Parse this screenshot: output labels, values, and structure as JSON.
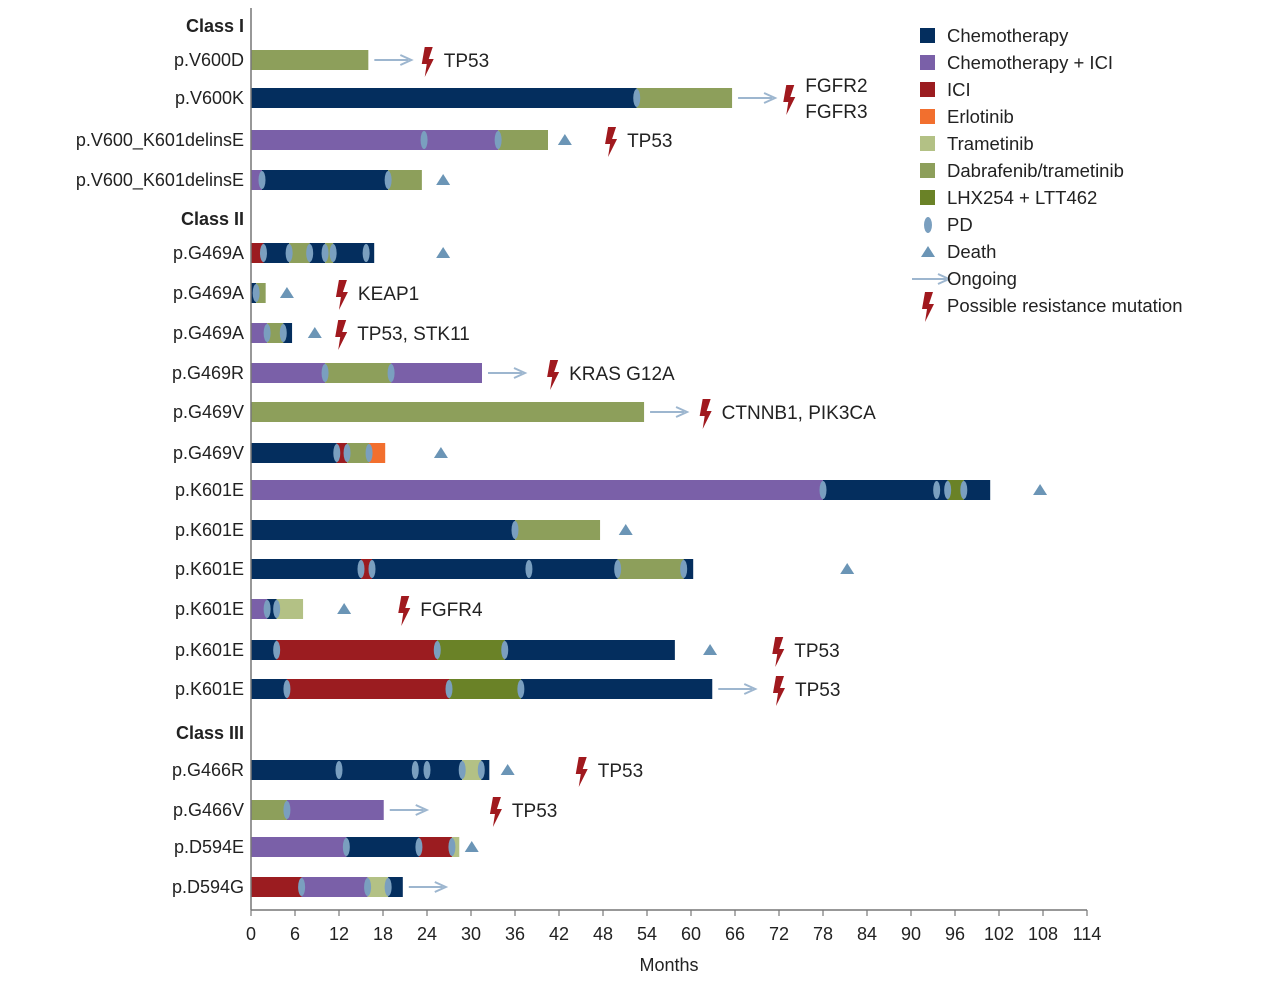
{
  "chart_data": {
    "type": "swimmer",
    "xlabel": "Months",
    "xlim": [
      0,
      114
    ],
    "xticks": [
      0,
      6,
      12,
      18,
      24,
      30,
      36,
      42,
      48,
      54,
      60,
      66,
      72,
      78,
      84,
      90,
      96,
      102,
      108,
      114
    ],
    "treatments": {
      "chemo": {
        "name": "Chemotherapy",
        "color": "#042e5e"
      },
      "chemoici": {
        "name": "Chemotherapy + ICI",
        "color": "#7a60a8"
      },
      "ici": {
        "name": "ICI",
        "color": "#9b1c20"
      },
      "erlotinib": {
        "name": "Erlotinib",
        "color": "#f26f2e"
      },
      "trametinib": {
        "name": "Trametinib",
        "color": "#b3c185"
      },
      "dt": {
        "name": "Dabrafenib/trametinib",
        "color": "#8d9f5b"
      },
      "lhx": {
        "name": "LHX254 + LTT462",
        "color": "#6a8227"
      }
    },
    "markers": {
      "pd": {
        "name": "PD",
        "color": "#7a9fbf"
      },
      "death": {
        "name": "Death",
        "color": "#6b95b6"
      },
      "ongoing": {
        "name": "Ongoing",
        "color": "#9db6cf"
      },
      "mutation": {
        "name": "Possible resistance mutation",
        "color": "#a0191e"
      }
    },
    "legend_order": [
      "chemo",
      "chemoici",
      "ici",
      "erlotinib",
      "trametinib",
      "dt",
      "lhx",
      "pd",
      "death",
      "ongoing",
      "mutation"
    ],
    "legend_position": "top-right",
    "rows": [
      {
        "header": "Class I"
      },
      {
        "label": "p.V600D",
        "segments": [
          [
            "dt",
            0,
            16
          ]
        ],
        "pd": [],
        "ongoing": true,
        "mutation": {
          "month": 24.1,
          "text": [
            "TP53"
          ]
        }
      },
      {
        "label": "p.V600K",
        "segments": [
          [
            "chemo",
            0,
            52.6
          ],
          [
            "dt",
            52.6,
            65.6
          ]
        ],
        "pd": [
          52.6
        ],
        "ongoing": true,
        "mutation": {
          "month": 73.4,
          "text": [
            "FGFR2",
            "FGFR3"
          ]
        }
      },
      {
        "label": "p.V600_K601delinsE",
        "segments": [
          [
            "chemoici",
            0,
            33.7
          ],
          [
            "dt",
            33.7,
            40.5
          ]
        ],
        "pd": [
          23.6,
          33.7
        ],
        "death": 42.8,
        "mutation": {
          "month": 49.1,
          "text": [
            "TP53"
          ]
        }
      },
      {
        "label": "p.V600_K601delinsE",
        "segments": [
          [
            "chemoici",
            0,
            1.5
          ],
          [
            "chemo",
            1.5,
            18.7
          ],
          [
            "dt",
            18.7,
            23.3
          ]
        ],
        "pd": [
          1.5,
          18.7
        ],
        "death": 26.2
      },
      {
        "header": "Class II"
      },
      {
        "label": "p.G469A",
        "segments": [
          [
            "ici",
            0,
            1.7
          ],
          [
            "chemo",
            1.7,
            5.2
          ],
          [
            "dt",
            5.2,
            8.0
          ],
          [
            "chemo",
            8.0,
            10.1
          ],
          [
            "dt",
            10.1,
            11.2
          ],
          [
            "chemo",
            11.2,
            16.8
          ]
        ],
        "pd": [
          1.7,
          5.2,
          8.0,
          10.1,
          11.2,
          15.7
        ],
        "death": 26.2
      },
      {
        "label": "p.G469A",
        "segments": [
          [
            "chemo",
            0,
            0.7
          ],
          [
            "dt",
            0.7,
            2.0
          ]
        ],
        "pd": [
          0.7
        ],
        "death": 4.9,
        "mutation": {
          "month": 12.4,
          "text": [
            "KEAP1"
          ]
        }
      },
      {
        "label": "p.G469A",
        "segments": [
          [
            "chemoici",
            0,
            2.2
          ],
          [
            "dt",
            2.2,
            4.4
          ],
          [
            "chemo",
            4.4,
            5.6
          ]
        ],
        "pd": [
          2.2,
          4.4
        ],
        "death": 8.7,
        "mutation": {
          "month": 12.3,
          "text": [
            "TP53, STK11"
          ]
        }
      },
      {
        "label": "p.G469R",
        "segments": [
          [
            "chemoici",
            0,
            10.1
          ],
          [
            "dt",
            10.1,
            19.1
          ],
          [
            "chemoici",
            19.1,
            31.5
          ]
        ],
        "pd": [
          10.1,
          19.1
        ],
        "ongoing": true,
        "mutation": {
          "month": 41.2,
          "text": [
            "KRAS G12A"
          ]
        }
      },
      {
        "label": "p.G469V",
        "segments": [
          [
            "dt",
            0,
            53.6
          ]
        ],
        "pd": [],
        "ongoing": true,
        "mutation": {
          "month": 62.0,
          "text": [
            "CTNNB1, PIK3CA"
          ]
        }
      },
      {
        "label": "p.G469V",
        "segments": [
          [
            "chemo",
            0,
            11.7
          ],
          [
            "ici",
            11.7,
            13.1
          ],
          [
            "dt",
            13.1,
            16.1
          ],
          [
            "erlotinib",
            16.1,
            18.3
          ]
        ],
        "pd": [
          11.7,
          13.1,
          16.1
        ],
        "death": 25.9
      },
      {
        "label": "p.K601E",
        "segments": [
          [
            "chemoici",
            0,
            78.0
          ],
          [
            "chemo",
            78.0,
            95.0
          ],
          [
            "lhx",
            95.0,
            97.2
          ],
          [
            "chemo",
            97.2,
            100.8
          ]
        ],
        "pd": [
          78.0,
          93.5,
          95.0,
          97.2
        ],
        "death": 107.6
      },
      {
        "label": "p.K601E",
        "segments": [
          [
            "chemo",
            0,
            36.0
          ],
          [
            "dt",
            36.0,
            47.6
          ]
        ],
        "pd": [
          36.0
        ],
        "death": 51.1
      },
      {
        "label": "p.K601E",
        "segments": [
          [
            "chemo",
            0,
            15.0
          ],
          [
            "ici",
            15.0,
            16.5
          ],
          [
            "chemo",
            16.5,
            50.0
          ],
          [
            "dt",
            50.0,
            59.0
          ],
          [
            "chemo",
            59.0,
            60.3
          ]
        ],
        "pd": [
          15.0,
          16.5,
          37.9,
          50.0,
          59.0
        ],
        "death": 81.3
      },
      {
        "label": "p.K601E",
        "segments": [
          [
            "chemoici",
            0,
            2.2
          ],
          [
            "chemo",
            2.2,
            3.5
          ],
          [
            "trametinib",
            3.5,
            7.1
          ]
        ],
        "pd": [
          2.2,
          3.5
        ],
        "death": 12.7,
        "mutation": {
          "month": 20.9,
          "text": [
            "FGFR4"
          ]
        }
      },
      {
        "label": "p.K601E",
        "segments": [
          [
            "chemo",
            0,
            3.5
          ],
          [
            "ici",
            3.5,
            25.4
          ],
          [
            "lhx",
            25.4,
            34.6
          ],
          [
            "chemo",
            34.6,
            57.8
          ]
        ],
        "pd": [
          3.5,
          25.4,
          34.6
        ],
        "death": 62.6,
        "mutation": {
          "month": 71.9,
          "text": [
            "TP53"
          ]
        }
      },
      {
        "label": "p.K601E",
        "segments": [
          [
            "chemo",
            0,
            4.9
          ],
          [
            "ici",
            4.9,
            27.0
          ],
          [
            "lhx",
            27.0,
            36.8
          ],
          [
            "chemo",
            36.8,
            62.9
          ]
        ],
        "pd": [
          4.9,
          27.0,
          36.8
        ],
        "ongoing": true,
        "mutation": {
          "month": 72.0,
          "text": [
            "TP53"
          ]
        }
      },
      {
        "header": "Class III"
      },
      {
        "label": "p.G466R",
        "segments": [
          [
            "chemo",
            0,
            28.8
          ],
          [
            "trametinib",
            28.8,
            31.4
          ],
          [
            "chemo",
            31.4,
            32.5
          ]
        ],
        "pd": [
          12.0,
          22.4,
          24.0,
          28.8,
          31.4
        ],
        "death": 35.0,
        "mutation": {
          "month": 45.1,
          "text": [
            "TP53"
          ]
        }
      },
      {
        "label": "p.G466V",
        "segments": [
          [
            "dt",
            0,
            4.9
          ],
          [
            "chemoici",
            4.9,
            18.1
          ]
        ],
        "pd": [
          4.9
        ],
        "ongoing": true,
        "mutation": {
          "month": 33.4,
          "text": [
            "TP53"
          ]
        }
      },
      {
        "label": "p.D594E",
        "segments": [
          [
            "chemoici",
            0,
            13.0
          ],
          [
            "chemo",
            13.0,
            22.9
          ],
          [
            "ici",
            22.9,
            27.4
          ],
          [
            "trametinib",
            27.4,
            28.4
          ]
        ],
        "pd": [
          13.0,
          22.9,
          27.4
        ],
        "death": 30.1
      },
      {
        "label": "p.D594G",
        "segments": [
          [
            "ici",
            0,
            6.9
          ],
          [
            "chemoici",
            6.9,
            15.9
          ],
          [
            "trametinib",
            15.9,
            18.7
          ],
          [
            "chemo",
            18.7,
            20.7
          ]
        ],
        "pd": [
          6.9,
          15.9,
          18.7
        ],
        "ongoing": true
      }
    ]
  }
}
